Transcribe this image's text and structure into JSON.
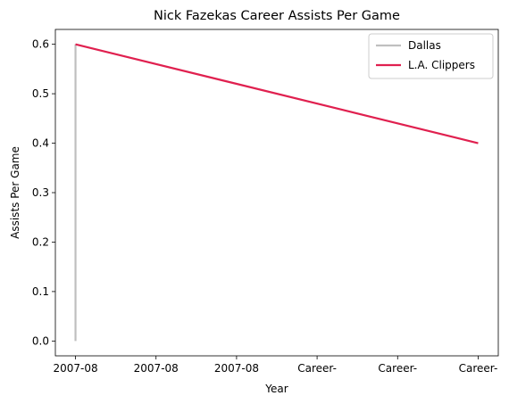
{
  "chart_data": {
    "type": "line",
    "title": "Nick Fazekas Career Assists Per Game",
    "xlabel": "Year",
    "ylabel": "Assists Per Game",
    "x_tick_labels": [
      "2007-08",
      "2007-08",
      "2007-08",
      "Career-",
      "Career-",
      "Career-"
    ],
    "y_ticks": [
      0.0,
      0.1,
      0.2,
      0.3,
      0.4,
      0.5,
      0.6
    ],
    "y_tick_labels": [
      "0.0",
      "0.1",
      "0.2",
      "0.3",
      "0.4",
      "0.5",
      "0.6"
    ],
    "xlim": [
      -0.25,
      5.25
    ],
    "ylim": [
      -0.03,
      0.63
    ],
    "grid": false,
    "legend_position": "top-right",
    "series": [
      {
        "name": "Dallas",
        "color": "#bfbfbf",
        "x": [
          0,
          0
        ],
        "y": [
          0.0,
          0.6
        ]
      },
      {
        "name": "L.A. Clippers",
        "color": "#e0204f",
        "x": [
          0,
          5
        ],
        "y": [
          0.6,
          0.4
        ]
      }
    ]
  }
}
